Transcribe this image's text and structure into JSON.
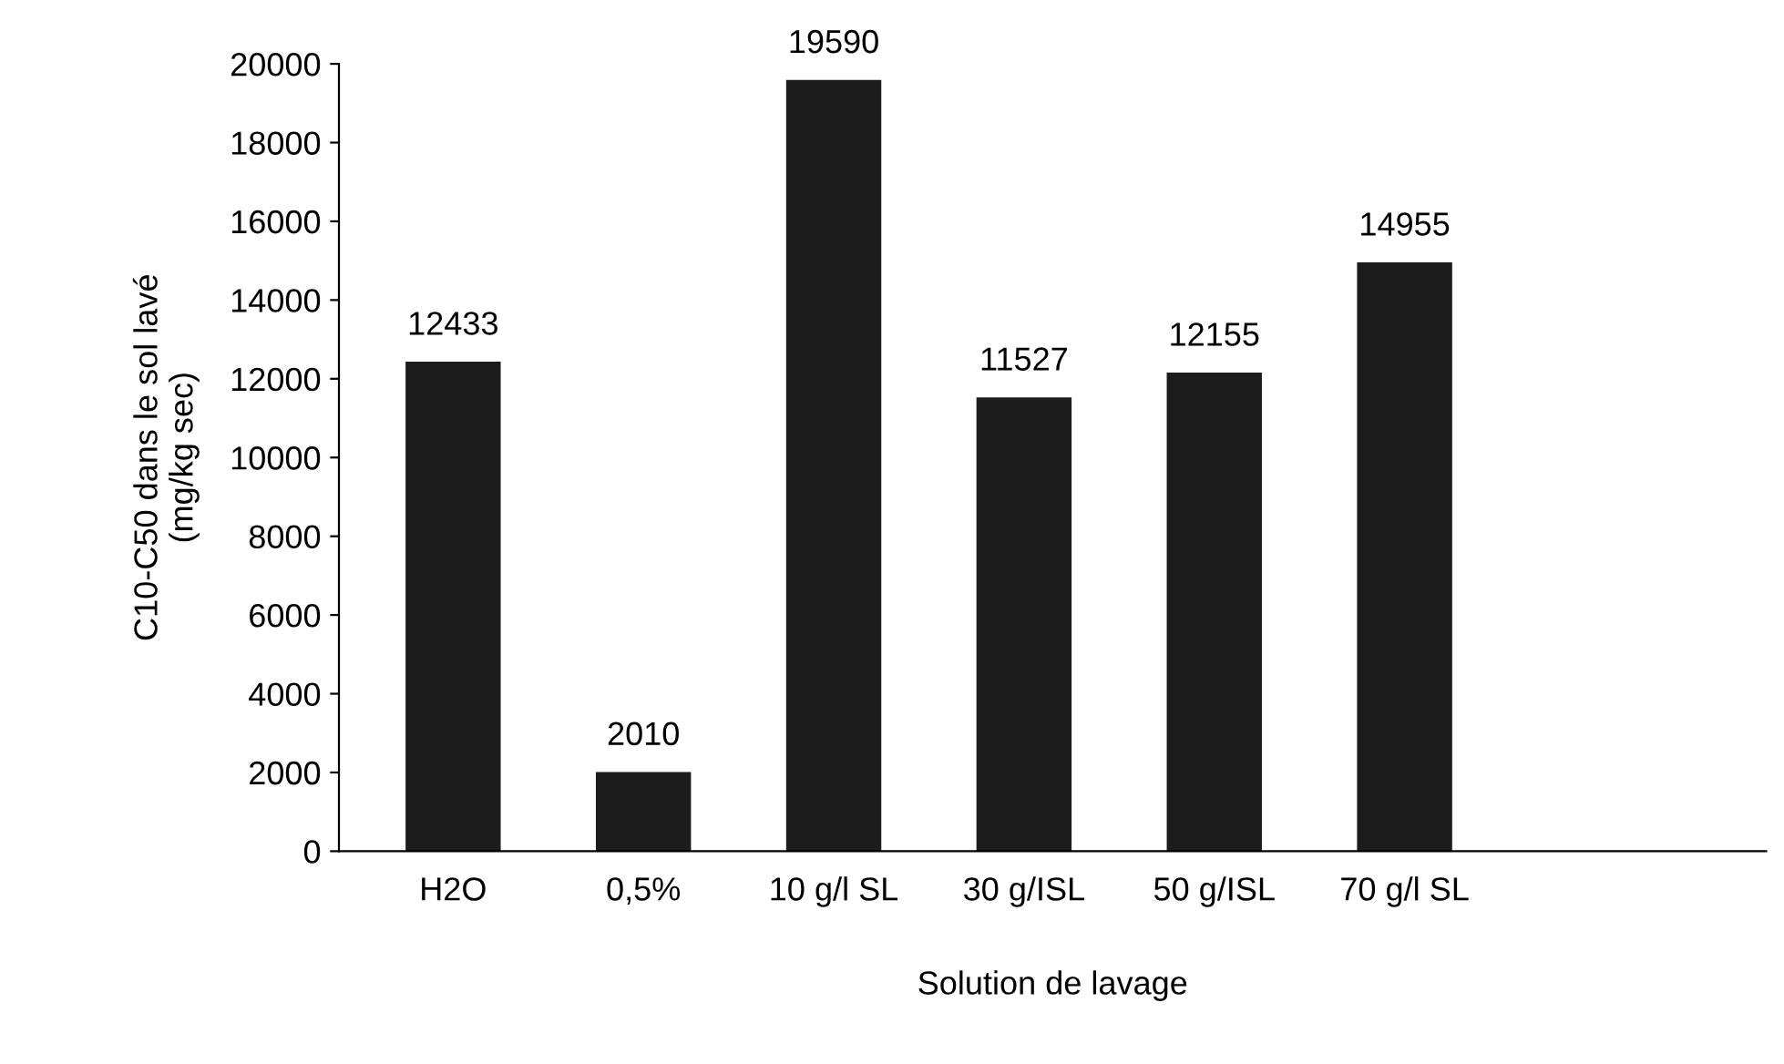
{
  "chart_data": {
    "type": "bar",
    "xlabel": "Solution de lavage",
    "ylabel": "C10-C50 dans le sol lavé\n(mg/kg sec)",
    "categories": [
      "H2O",
      "0,5%",
      "10 g/l SL",
      "30 g/ISL",
      "50 g/ISL",
      "70 g/l SL"
    ],
    "values": [
      12433,
      2010,
      19590,
      11527,
      12155,
      14955
    ],
    "color": "#1c1c1c",
    "ylim": [
      0,
      20000
    ],
    "yticks": [
      0,
      2000,
      4000,
      6000,
      8000,
      10000,
      12000,
      14000,
      16000,
      18000,
      20000
    ],
    "data_labels": true,
    "grid": false,
    "legend": false
  }
}
